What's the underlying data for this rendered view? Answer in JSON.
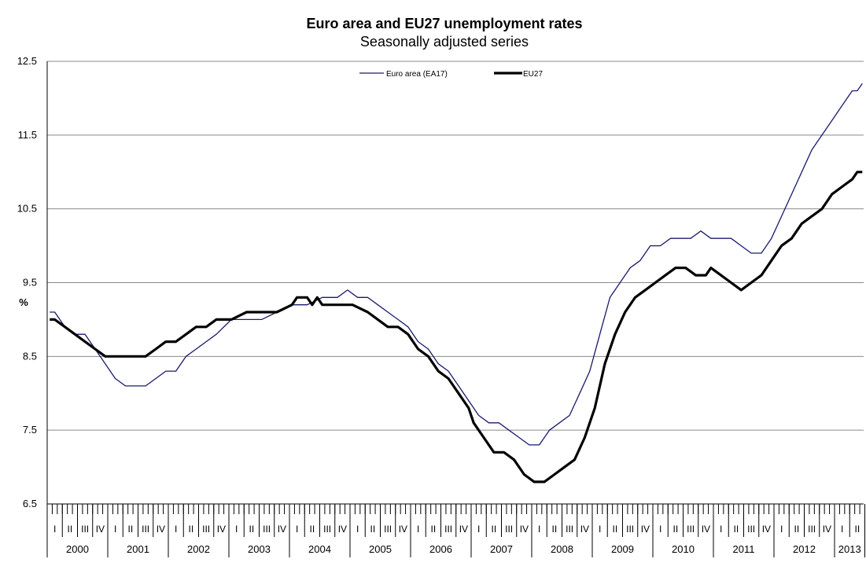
{
  "chart_data": {
    "type": "line",
    "title": "Euro area and EU27 unemployment rates",
    "subtitle": "Seasonally adjusted series",
    "ylabel": "%",
    "ylim": [
      6.5,
      12.5
    ],
    "yticks": [
      "12.5",
      "11.5",
      "10.5",
      "9.5",
      "8.5",
      "7.5",
      "6.5"
    ],
    "grid": true,
    "legend_position": "top",
    "x_start": "2000-01",
    "x_end": "2013-06",
    "quarter_labels": [
      "I",
      "II",
      "III",
      "IV"
    ],
    "years": [
      "2000",
      "2001",
      "2002",
      "2003",
      "2004",
      "2005",
      "2006",
      "2007",
      "2008",
      "2009",
      "2010",
      "2011",
      "2012",
      "2013"
    ],
    "series": [
      {
        "name": "Euro area (EA17)",
        "color": "#1a1a6e",
        "points": [
          [
            "2000-01",
            9.1
          ],
          [
            "2000-02",
            9.1
          ],
          [
            "2000-04",
            8.9
          ],
          [
            "2000-06",
            8.8
          ],
          [
            "2000-08",
            8.8
          ],
          [
            "2000-10",
            8.6
          ],
          [
            "2000-12",
            8.4
          ],
          [
            "2001-02",
            8.2
          ],
          [
            "2001-04",
            8.1
          ],
          [
            "2001-06",
            8.1
          ],
          [
            "2001-08",
            8.1
          ],
          [
            "2001-10",
            8.2
          ],
          [
            "2001-12",
            8.3
          ],
          [
            "2002-02",
            8.3
          ],
          [
            "2002-04",
            8.5
          ],
          [
            "2002-06",
            8.6
          ],
          [
            "2002-08",
            8.7
          ],
          [
            "2002-10",
            8.8
          ],
          [
            "2003-01",
            9.0
          ],
          [
            "2003-04",
            9.0
          ],
          [
            "2003-07",
            9.0
          ],
          [
            "2003-10",
            9.1
          ],
          [
            "2004-01",
            9.2
          ],
          [
            "2004-04",
            9.2
          ],
          [
            "2004-07",
            9.3
          ],
          [
            "2004-10",
            9.3
          ],
          [
            "2004-12",
            9.4
          ],
          [
            "2005-02",
            9.3
          ],
          [
            "2005-04",
            9.3
          ],
          [
            "2005-06",
            9.2
          ],
          [
            "2005-08",
            9.1
          ],
          [
            "2005-10",
            9.0
          ],
          [
            "2005-12",
            8.9
          ],
          [
            "2006-02",
            8.7
          ],
          [
            "2006-04",
            8.6
          ],
          [
            "2006-06",
            8.4
          ],
          [
            "2006-08",
            8.3
          ],
          [
            "2006-10",
            8.1
          ],
          [
            "2006-12",
            7.9
          ],
          [
            "2007-02",
            7.7
          ],
          [
            "2007-04",
            7.6
          ],
          [
            "2007-06",
            7.6
          ],
          [
            "2007-08",
            7.5
          ],
          [
            "2007-10",
            7.4
          ],
          [
            "2007-12",
            7.3
          ],
          [
            "2008-02",
            7.3
          ],
          [
            "2008-04",
            7.5
          ],
          [
            "2008-06",
            7.6
          ],
          [
            "2008-08",
            7.7
          ],
          [
            "2008-10",
            8.0
          ],
          [
            "2008-12",
            8.3
          ],
          [
            "2009-02",
            8.8
          ],
          [
            "2009-04",
            9.3
          ],
          [
            "2009-06",
            9.5
          ],
          [
            "2009-08",
            9.7
          ],
          [
            "2009-10",
            9.8
          ],
          [
            "2009-12",
            10.0
          ],
          [
            "2010-02",
            10.0
          ],
          [
            "2010-04",
            10.1
          ],
          [
            "2010-06",
            10.1
          ],
          [
            "2010-08",
            10.1
          ],
          [
            "2010-10",
            10.2
          ],
          [
            "2010-12",
            10.1
          ],
          [
            "2011-02",
            10.1
          ],
          [
            "2011-04",
            10.1
          ],
          [
            "2011-06",
            10.0
          ],
          [
            "2011-08",
            9.9
          ],
          [
            "2011-10",
            9.9
          ],
          [
            "2011-12",
            10.1
          ],
          [
            "2012-02",
            10.4
          ],
          [
            "2012-04",
            10.7
          ],
          [
            "2012-06",
            11.0
          ],
          [
            "2012-08",
            11.3
          ],
          [
            "2012-10",
            11.5
          ],
          [
            "2012-12",
            11.7
          ],
          [
            "2013-02",
            11.9
          ],
          [
            "2013-04",
            12.1
          ],
          [
            "2013-05",
            12.1
          ],
          [
            "2013-06",
            12.2
          ]
        ]
      },
      {
        "name": "EU27",
        "color": "#000000",
        "points": [
          [
            "2000-01",
            9.0
          ],
          [
            "2000-02",
            9.0
          ],
          [
            "2000-04",
            8.9
          ],
          [
            "2000-06",
            8.8
          ],
          [
            "2000-08",
            8.7
          ],
          [
            "2000-10",
            8.6
          ],
          [
            "2000-12",
            8.5
          ],
          [
            "2001-02",
            8.5
          ],
          [
            "2001-04",
            8.5
          ],
          [
            "2001-06",
            8.5
          ],
          [
            "2001-08",
            8.5
          ],
          [
            "2001-10",
            8.6
          ],
          [
            "2001-12",
            8.7
          ],
          [
            "2002-02",
            8.7
          ],
          [
            "2002-04",
            8.8
          ],
          [
            "2002-06",
            8.9
          ],
          [
            "2002-08",
            8.9
          ],
          [
            "2002-10",
            9.0
          ],
          [
            "2003-01",
            9.0
          ],
          [
            "2003-04",
            9.1
          ],
          [
            "2003-07",
            9.1
          ],
          [
            "2003-10",
            9.1
          ],
          [
            "2004-01",
            9.2
          ],
          [
            "2004-02",
            9.3
          ],
          [
            "2004-04",
            9.3
          ],
          [
            "2004-05",
            9.2
          ],
          [
            "2004-06",
            9.3
          ],
          [
            "2004-07",
            9.2
          ],
          [
            "2004-10",
            9.2
          ],
          [
            "2005-01",
            9.2
          ],
          [
            "2005-04",
            9.1
          ],
          [
            "2005-06",
            9.0
          ],
          [
            "2005-08",
            8.9
          ],
          [
            "2005-10",
            8.9
          ],
          [
            "2005-12",
            8.8
          ],
          [
            "2006-02",
            8.6
          ],
          [
            "2006-04",
            8.5
          ],
          [
            "2006-06",
            8.3
          ],
          [
            "2006-08",
            8.2
          ],
          [
            "2006-10",
            8.0
          ],
          [
            "2006-12",
            7.8
          ],
          [
            "2007-01",
            7.6
          ],
          [
            "2007-03",
            7.4
          ],
          [
            "2007-05",
            7.2
          ],
          [
            "2007-07",
            7.2
          ],
          [
            "2007-09",
            7.1
          ],
          [
            "2007-11",
            6.9
          ],
          [
            "2008-01",
            6.8
          ],
          [
            "2008-03",
            6.8
          ],
          [
            "2008-05",
            6.9
          ],
          [
            "2008-07",
            7.0
          ],
          [
            "2008-09",
            7.1
          ],
          [
            "2008-11",
            7.4
          ],
          [
            "2009-01",
            7.8
          ],
          [
            "2009-03",
            8.4
          ],
          [
            "2009-05",
            8.8
          ],
          [
            "2009-07",
            9.1
          ],
          [
            "2009-09",
            9.3
          ],
          [
            "2009-11",
            9.4
          ],
          [
            "2010-01",
            9.5
          ],
          [
            "2010-03",
            9.6
          ],
          [
            "2010-05",
            9.7
          ],
          [
            "2010-07",
            9.7
          ],
          [
            "2010-09",
            9.6
          ],
          [
            "2010-11",
            9.6
          ],
          [
            "2010-12",
            9.7
          ],
          [
            "2011-02",
            9.6
          ],
          [
            "2011-04",
            9.5
          ],
          [
            "2011-06",
            9.4
          ],
          [
            "2011-08",
            9.5
          ],
          [
            "2011-10",
            9.6
          ],
          [
            "2011-12",
            9.8
          ],
          [
            "2012-02",
            10.0
          ],
          [
            "2012-04",
            10.1
          ],
          [
            "2012-06",
            10.3
          ],
          [
            "2012-08",
            10.4
          ],
          [
            "2012-10",
            10.5
          ],
          [
            "2012-12",
            10.7
          ],
          [
            "2013-02",
            10.8
          ],
          [
            "2013-04",
            10.9
          ],
          [
            "2013-05",
            11.0
          ],
          [
            "2013-06",
            11.0
          ]
        ]
      }
    ]
  }
}
